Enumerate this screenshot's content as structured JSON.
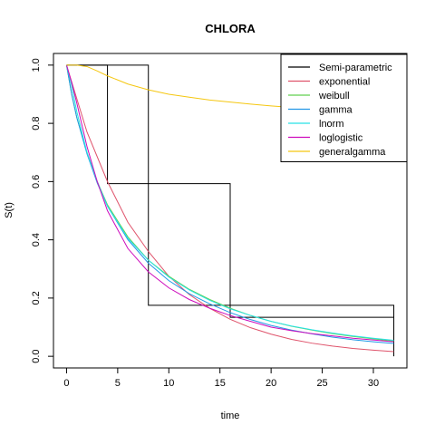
{
  "chart_data": {
    "type": "line",
    "title": "CHLORA",
    "xlabel": "time",
    "ylabel": "S(t)",
    "xlim": [
      -1.28,
      33.28
    ],
    "ylim": [
      -0.04,
      1.04
    ],
    "xticks": [
      0,
      5,
      10,
      15,
      20,
      25,
      30
    ],
    "yticks": [
      0.0,
      0.2,
      0.4,
      0.6,
      0.8,
      1.0
    ],
    "ytick_labels": [
      "0.0",
      "0.2",
      "0.4",
      "0.6",
      "0.8",
      "1.0"
    ],
    "legend_position": "top-right",
    "grid": false,
    "series": [
      {
        "name": "Semi-parametric",
        "color": "#000000",
        "kind": "step",
        "x": [
          0,
          4,
          8,
          16,
          32
        ],
        "y": [
          1.0,
          0.593,
          0.175,
          0.134,
          0.134
        ],
        "lower": [
          1.0,
          0.593,
          0.175,
          0.134,
          0.134
        ],
        "upper": [
          1.0,
          1.0,
          0.593,
          0.175,
          0.134
        ],
        "lower_x": [
          0,
          4,
          8,
          16,
          32
        ],
        "band_x": [
          0,
          4,
          8,
          16,
          32
        ]
      },
      {
        "name": "exponential",
        "color": "#DF536B",
        "kind": "line",
        "x": [
          0,
          2,
          4,
          6,
          8,
          10,
          12,
          14,
          16,
          18,
          20,
          22,
          24,
          26,
          28,
          30,
          32
        ],
        "y": [
          1.0,
          0.77,
          0.6,
          0.46,
          0.36,
          0.275,
          0.212,
          0.165,
          0.127,
          0.098,
          0.076,
          0.058,
          0.045,
          0.035,
          0.027,
          0.021,
          0.016
        ]
      },
      {
        "name": "weibull",
        "color": "#61D04F",
        "kind": "line",
        "x": [
          0,
          0.5,
          1,
          2,
          3,
          4,
          6,
          8,
          10,
          12,
          14,
          16,
          18,
          20,
          22,
          24,
          26,
          28,
          30,
          32
        ],
        "y": [
          1.0,
          0.9,
          0.82,
          0.7,
          0.6,
          0.52,
          0.41,
          0.33,
          0.275,
          0.23,
          0.195,
          0.165,
          0.14,
          0.12,
          0.103,
          0.09,
          0.078,
          0.068,
          0.06,
          0.052
        ]
      },
      {
        "name": "gamma",
        "color": "#2297E6",
        "kind": "line",
        "x": [
          0,
          0.5,
          1,
          2,
          3,
          4,
          6,
          8,
          10,
          12,
          14,
          16,
          18,
          20,
          22,
          24,
          26,
          28,
          30,
          32
        ],
        "y": [
          1.0,
          0.9,
          0.82,
          0.695,
          0.595,
          0.515,
          0.4,
          0.32,
          0.26,
          0.215,
          0.18,
          0.15,
          0.126,
          0.106,
          0.09,
          0.077,
          0.066,
          0.057,
          0.05,
          0.044
        ]
      },
      {
        "name": "lnorm",
        "color": "#28E2E5",
        "kind": "line",
        "x": [
          0,
          0.5,
          1,
          2,
          3,
          4,
          6,
          8,
          10,
          12,
          14,
          16,
          18,
          20,
          22,
          24,
          26,
          28,
          30,
          32
        ],
        "y": [
          1.0,
          0.93,
          0.84,
          0.7,
          0.6,
          0.515,
          0.405,
          0.33,
          0.272,
          0.228,
          0.192,
          0.163,
          0.14,
          0.12,
          0.104,
          0.091,
          0.08,
          0.07,
          0.062,
          0.055
        ]
      },
      {
        "name": "loglogistic",
        "color": "#CD0BBC",
        "kind": "line",
        "x": [
          0,
          0.5,
          1,
          2,
          3,
          4,
          6,
          8,
          10,
          12,
          14,
          16,
          18,
          20,
          22,
          24,
          26,
          28,
          30,
          32
        ],
        "y": [
          1.0,
          0.94,
          0.87,
          0.72,
          0.6,
          0.5,
          0.37,
          0.29,
          0.235,
          0.195,
          0.165,
          0.14,
          0.12,
          0.1,
          0.088,
          0.078,
          0.07,
          0.062,
          0.056,
          0.05
        ]
      },
      {
        "name": "generalgamma",
        "color": "#F5C710",
        "kind": "line",
        "x": [
          0,
          1,
          2,
          3,
          4,
          6,
          8,
          10,
          12,
          14,
          16,
          18,
          20,
          22,
          24
        ],
        "y": [
          1.0,
          1.0,
          0.995,
          0.98,
          0.963,
          0.935,
          0.915,
          0.9,
          0.89,
          0.88,
          0.873,
          0.866,
          0.86,
          0.855,
          0.85
        ]
      }
    ]
  }
}
